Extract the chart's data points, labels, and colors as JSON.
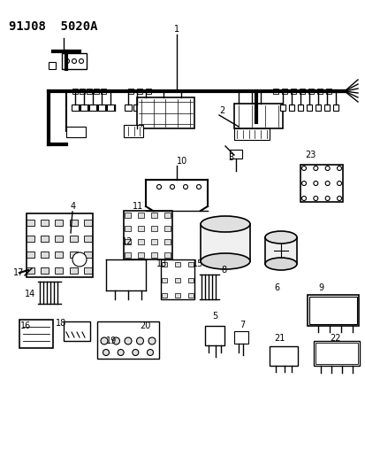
{
  "title": "91J08  5020A",
  "bg_color": "#ffffff",
  "line_color": "#000000",
  "title_fontsize": 10,
  "label_fontsize": 7,
  "figsize": [
    4.14,
    5.33
  ],
  "dpi": 100
}
